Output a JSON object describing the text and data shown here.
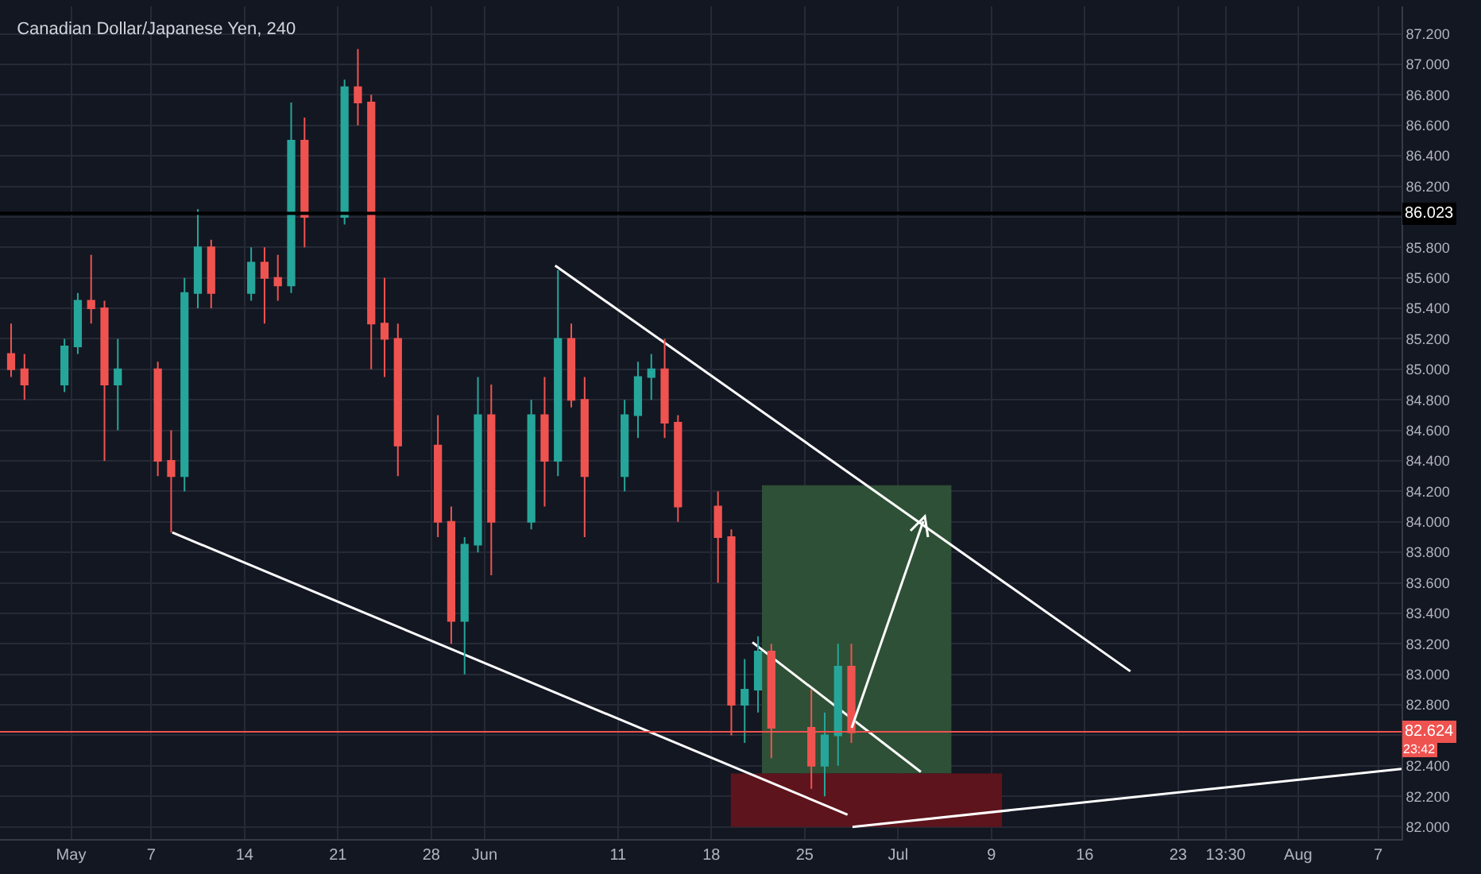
{
  "chart_data": {
    "type": "candlestick",
    "title": "Canadian Dollar/Japanese Yen, 240",
    "x": [
      "--04-26T12:00",
      "--04-27T12:00",
      "--04-30T12:00",
      "--05-01T12:00",
      "--05-02T12:00",
      "--05-03T12:00",
      "--05-04T12:00",
      "--05-07T12:00",
      "--05-08T12:00",
      "--05-09T12:00",
      "--05-10T12:00",
      "--05-11T12:00",
      "--05-14T12:00",
      "--05-15T12:00",
      "--05-16T12:00",
      "--05-17T12:00",
      "--05-18T12:00",
      "--05-21T12:00",
      "--05-22T12:00",
      "--05-23T12:00",
      "--05-24T12:00",
      "--05-25T12:00",
      "--05-28T12:00",
      "--05-29T12:00",
      "--05-30T12:00",
      "--05-31T12:00",
      "--06-01T12:00",
      "--06-04T12:00",
      "--06-05T12:00",
      "--06-06T12:00",
      "--06-07T12:00",
      "--06-08T12:00",
      "--06-11T12:00",
      "--06-12T12:00",
      "--06-13T12:00",
      "--06-14T12:00",
      "--06-15T12:00",
      "--06-18T12:00",
      "--06-19T12:00",
      "--06-20T12:00",
      "--06-21T12:00",
      "--06-22T12:00",
      "--06-25T12:00",
      "--06-26T12:00",
      "--06-27T12:00",
      "--06-28T12:00"
    ],
    "ohlc": [
      [
        85.1,
        85.3,
        84.95,
        85.0
      ],
      [
        85.0,
        85.1,
        84.8,
        84.9
      ],
      [
        84.9,
        85.2,
        84.85,
        85.15
      ],
      [
        85.15,
        85.5,
        85.1,
        85.45
      ],
      [
        85.45,
        85.75,
        85.3,
        85.4
      ],
      [
        85.4,
        85.45,
        84.4,
        84.9
      ],
      [
        84.9,
        85.2,
        84.6,
        85.0
      ],
      [
        85.0,
        85.05,
        84.3,
        84.4
      ],
      [
        84.4,
        84.6,
        83.93,
        84.3
      ],
      [
        84.3,
        85.6,
        84.2,
        85.5
      ],
      [
        85.5,
        86.05,
        85.4,
        85.8
      ],
      [
        85.8,
        85.85,
        85.4,
        85.5
      ],
      [
        85.5,
        85.8,
        85.45,
        85.7
      ],
      [
        85.7,
        85.8,
        85.3,
        85.6
      ],
      [
        85.6,
        85.75,
        85.45,
        85.55
      ],
      [
        85.55,
        86.75,
        85.5,
        86.5
      ],
      [
        86.5,
        86.65,
        85.8,
        86.0
      ],
      [
        86.0,
        86.9,
        85.95,
        86.85
      ],
      [
        86.85,
        87.1,
        86.6,
        86.75
      ],
      [
        86.75,
        86.8,
        85.0,
        85.3
      ],
      [
        85.3,
        85.6,
        84.95,
        85.2
      ],
      [
        85.2,
        85.3,
        84.3,
        84.5
      ],
      [
        84.5,
        84.7,
        83.9,
        84.0
      ],
      [
        84.0,
        84.1,
        83.2,
        83.35
      ],
      [
        83.35,
        83.9,
        83.0,
        83.85
      ],
      [
        83.85,
        84.95,
        83.8,
        84.7
      ],
      [
        84.7,
        84.9,
        83.65,
        84.0
      ],
      [
        84.0,
        84.8,
        83.95,
        84.7
      ],
      [
        84.7,
        84.95,
        84.1,
        84.4
      ],
      [
        84.4,
        85.65,
        84.3,
        85.2
      ],
      [
        85.2,
        85.3,
        84.75,
        84.8
      ],
      [
        84.8,
        84.95,
        83.9,
        84.3
      ],
      [
        84.3,
        84.8,
        84.2,
        84.7
      ],
      [
        84.7,
        85.05,
        84.55,
        84.95
      ],
      [
        84.95,
        85.1,
        84.8,
        85.0
      ],
      [
        85.0,
        85.2,
        84.55,
        84.65
      ],
      [
        84.65,
        84.7,
        84.0,
        84.1
      ],
      [
        84.1,
        84.2,
        83.6,
        83.9
      ],
      [
        83.9,
        83.95,
        82.6,
        82.8
      ],
      [
        82.8,
        83.1,
        82.55,
        82.9
      ],
      [
        82.9,
        83.25,
        82.75,
        83.15
      ],
      [
        83.15,
        83.2,
        82.45,
        82.65
      ],
      [
        82.65,
        82.9,
        82.25,
        82.4
      ],
      [
        82.4,
        82.75,
        82.2,
        82.6
      ],
      [
        82.6,
        83.2,
        82.4,
        83.05
      ],
      [
        83.05,
        83.2,
        82.55,
        82.62
      ]
    ],
    "colors": [
      "#ef5350",
      "#ef5350",
      "#26a69a",
      "#26a69a",
      "#ef5350",
      "#ef5350",
      "#26a69a",
      "#ef5350",
      "#ef5350",
      "#26a69a",
      "#26a69a",
      "#ef5350",
      "#26a69a",
      "#ef5350",
      "#ef5350",
      "#26a69a",
      "#ef5350",
      "#26a69a",
      "#ef5350",
      "#ef5350",
      "#ef5350",
      "#ef5350",
      "#ef5350",
      "#ef5350",
      "#26a69a",
      "#26a69a",
      "#ef5350",
      "#26a69a",
      "#ef5350",
      "#26a69a",
      "#ef5350",
      "#ef5350",
      "#26a69a",
      "#26a69a",
      "#26a69a",
      "#ef5350",
      "#ef5350",
      "#ef5350",
      "#ef5350",
      "#26a69a",
      "#26a69a",
      "#ef5350",
      "#ef5350",
      "#26a69a",
      "#26a69a",
      "#ef5350"
    ],
    "series": [
      {
        "type": "area",
        "color": "#2e5036",
        "x": [
          "--06-21T19:00",
          "--07-06T00:00"
        ],
        "values": [
          null,
          null
        ],
        "lower": [
          82.35,
          82.35
        ],
        "upper": [
          84.24,
          84.24
        ]
      },
      {
        "type": "area",
        "color": "#5e141c",
        "x": [
          "--06-19T11:00",
          "--07-09T19:00"
        ],
        "values": [
          null,
          null
        ],
        "lower": [
          82.0,
          82.0
        ],
        "upper": [
          82.35,
          82.35
        ]
      },
      {
        "type": "line",
        "color": "#ffffff",
        "x": [
          "--05-08T14:00",
          "--06-28T05:00"
        ],
        "values": [
          83.93,
          82.08
        ]
      },
      {
        "type": "line",
        "color": "#ffffff",
        "x": [
          "--06-06T07:00",
          "--07-19T10:00"
        ],
        "values": [
          85.68,
          83.02
        ]
      },
      {
        "type": "line",
        "color": "#ffffff",
        "x": [
          "--06-21T02:00",
          "--07-03T17:00"
        ],
        "values": [
          83.21,
          82.36
        ]
      },
      {
        "type": "line",
        "color": "#ffffff",
        "x": [
          "--06-28T14:00",
          "--08-08T18:00"
        ],
        "values": [
          82.0,
          82.38
        ]
      }
    ],
    "xlim": [
      "--04-25T16:00",
      "--08-08T18:00"
    ],
    "xticks": [
      {
        "value": "--05-01",
        "label": "May"
      },
      {
        "value": "--05-07",
        "label": "7"
      },
      {
        "value": "--05-14",
        "label": "14"
      },
      {
        "value": "--05-21",
        "label": "21"
      },
      {
        "value": "--05-28",
        "label": "28"
      },
      {
        "value": "--06-01",
        "label": "Jun"
      },
      {
        "value": "--06-11",
        "label": "11"
      },
      {
        "value": "--06-18",
        "label": "18"
      },
      {
        "value": "--06-25",
        "label": "25"
      },
      {
        "value": "--07-02",
        "label": "Jul"
      },
      {
        "value": "--07-09",
        "label": "9"
      },
      {
        "value": "--07-16",
        "label": "16"
      },
      {
        "value": "--07-23",
        "label": "23"
      },
      {
        "value": "--07-26T13:30",
        "label": "13:30"
      },
      {
        "value": "--08-01",
        "label": "Aug"
      },
      {
        "value": "--08-07",
        "label": "7"
      }
    ],
    "ylim": [
      81.92,
      87.38
    ],
    "yticks": [
      {
        "value": 82,
        "label": "82.000"
      },
      {
        "value": 82.2,
        "label": "82.200"
      },
      {
        "value": 82.4,
        "label": "82.400"
      },
      {
        "value": 82.6,
        "label": null
      },
      {
        "value": 82.8,
        "label": "82.800"
      },
      {
        "value": 83,
        "label": "83.000"
      },
      {
        "value": 83.2,
        "label": "83.200"
      },
      {
        "value": 83.4,
        "label": "83.400"
      },
      {
        "value": 83.6,
        "label": "83.600"
      },
      {
        "value": 83.8,
        "label": "83.800"
      },
      {
        "value": 84,
        "label": "84.000"
      },
      {
        "value": 84.2,
        "label": "84.200"
      },
      {
        "value": 84.4,
        "label": "84.400"
      },
      {
        "value": 84.6,
        "label": "84.600"
      },
      {
        "value": 84.8,
        "label": "84.800"
      },
      {
        "value": 85,
        "label": "85.000"
      },
      {
        "value": 85.2,
        "label": "85.200"
      },
      {
        "value": 85.4,
        "label": "85.400"
      },
      {
        "value": 85.6,
        "label": "85.600"
      },
      {
        "value": 85.8,
        "label": "85.800"
      },
      {
        "value": 86,
        "label": null
      },
      {
        "value": 86.2,
        "label": "86.200"
      },
      {
        "value": 86.4,
        "label": "86.400"
      },
      {
        "value": 86.6,
        "label": "86.600"
      },
      {
        "value": 86.8,
        "label": "86.800"
      },
      {
        "value": 87,
        "label": "87.000"
      },
      {
        "value": 87.2,
        "label": "87.200"
      }
    ],
    "grid": true,
    "ref_lines": [
      {
        "axis": "y",
        "value": 86.023,
        "label": "86.023",
        "color": "#000000"
      },
      {
        "axis": "y",
        "value": 82.624,
        "label": "82.624",
        "color": "#ef5350"
      }
    ],
    "annotations": [
      "23:42"
    ]
  }
}
